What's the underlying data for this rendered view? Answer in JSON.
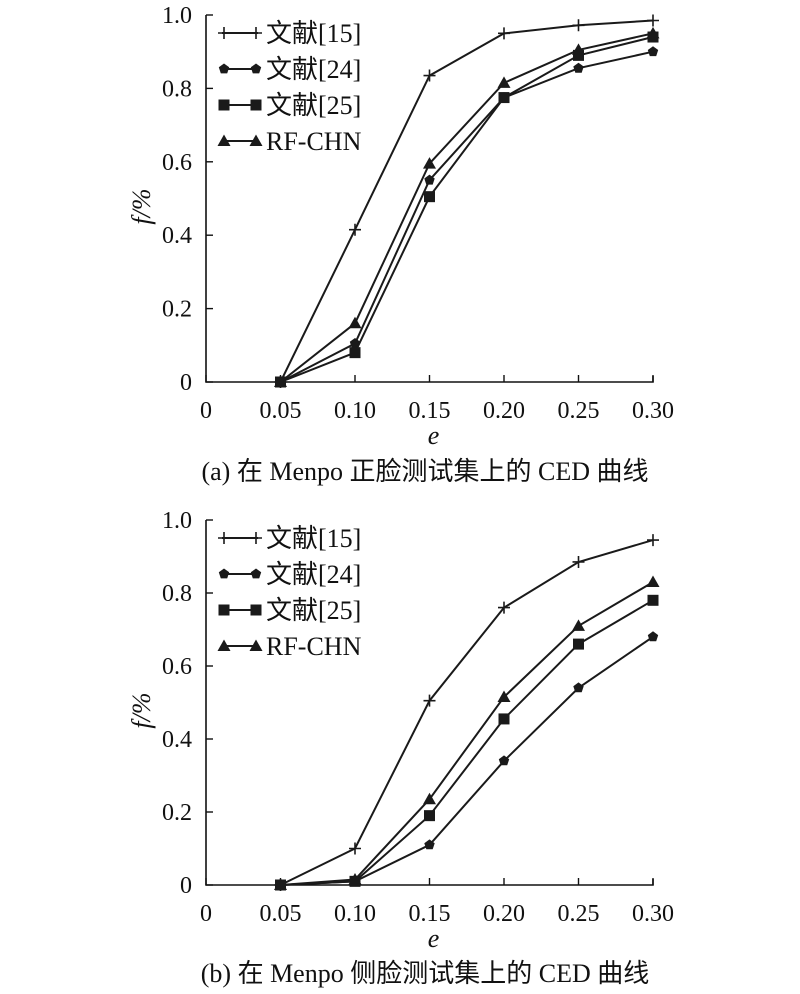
{
  "chart_data": [
    {
      "type": "line",
      "caption": "(a) 在 Menpo 正脸测试集上的 CED 曲线",
      "xlabel": "e",
      "ylabel": "f/%",
      "xlim": [
        0,
        0.3
      ],
      "ylim": [
        0,
        1.0
      ],
      "x_ticks": [
        "0",
        "0.05",
        "0.10",
        "0.15",
        "0.20",
        "0.25",
        "0.30"
      ],
      "y_ticks": [
        "0",
        "0.2",
        "0.4",
        "0.6",
        "0.8",
        "1.0"
      ],
      "x": [
        0.05,
        0.1,
        0.15,
        0.2,
        0.25,
        0.3
      ],
      "legend_position": "top-left",
      "series": [
        {
          "name": "文献[15]",
          "marker": "plus",
          "values": [
            0.0,
            0.415,
            0.835,
            0.95,
            0.972,
            0.985
          ]
        },
        {
          "name": "文献[24]",
          "marker": "pentagon",
          "values": [
            0.0,
            0.105,
            0.55,
            0.775,
            0.855,
            0.9
          ]
        },
        {
          "name": "文献[25]",
          "marker": "square",
          "values": [
            0.0,
            0.08,
            0.505,
            0.775,
            0.89,
            0.94
          ]
        },
        {
          "name": "RF-CHN",
          "marker": "triangle",
          "values": [
            0.0,
            0.16,
            0.595,
            0.815,
            0.905,
            0.95
          ]
        }
      ]
    },
    {
      "type": "line",
      "caption": "(b) 在 Menpo 侧脸测试集上的 CED 曲线",
      "xlabel": "e",
      "ylabel": "f/%",
      "xlim": [
        0,
        0.3
      ],
      "ylim": [
        0,
        1.0
      ],
      "x_ticks": [
        "0",
        "0.05",
        "0.10",
        "0.15",
        "0.20",
        "0.25",
        "0.30"
      ],
      "y_ticks": [
        "0",
        "0.2",
        "0.4",
        "0.6",
        "0.8",
        "1.0"
      ],
      "x": [
        0.05,
        0.1,
        0.15,
        0.2,
        0.25,
        0.3
      ],
      "legend_position": "top-left",
      "series": [
        {
          "name": "文献[15]",
          "marker": "plus",
          "values": [
            0.0,
            0.1,
            0.505,
            0.76,
            0.885,
            0.945
          ]
        },
        {
          "name": "文献[24]",
          "marker": "pentagon",
          "values": [
            0.0,
            0.01,
            0.11,
            0.34,
            0.54,
            0.68
          ]
        },
        {
          "name": "文献[25]",
          "marker": "square",
          "values": [
            0.0,
            0.01,
            0.19,
            0.455,
            0.66,
            0.78
          ]
        },
        {
          "name": "RF-CHN",
          "marker": "triangle",
          "values": [
            0.0,
            0.015,
            0.235,
            0.515,
            0.71,
            0.83
          ]
        }
      ]
    }
  ]
}
